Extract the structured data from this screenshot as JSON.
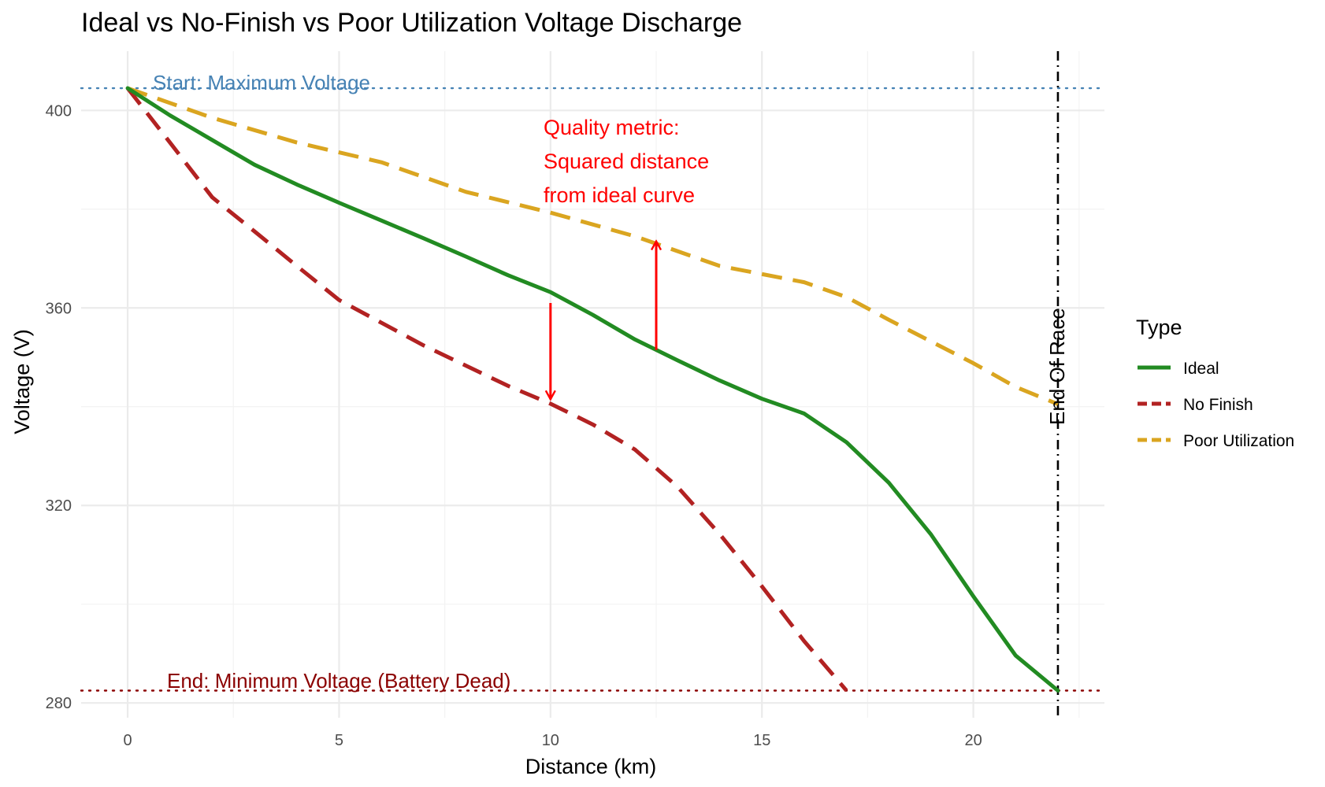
{
  "chart_data": {
    "type": "line",
    "title": "Ideal vs No-Finish vs Poor Utilization Voltage Discharge",
    "xlabel": "Distance (km)",
    "ylabel": "Voltage (V)",
    "xlim": [
      -1.1,
      23.1
    ],
    "ylim": [
      277,
      412
    ],
    "x_ticks": [
      0,
      5,
      10,
      15,
      20
    ],
    "y_ticks": [
      280,
      320,
      360,
      400
    ],
    "x_tick_labels": [
      "0",
      "5",
      "10",
      "15",
      "20"
    ],
    "y_tick_labels": [
      "280",
      "320",
      "360",
      "400"
    ],
    "grid": true,
    "legend": {
      "title": "Type",
      "position": "right"
    },
    "series": [
      {
        "name": "Ideal",
        "color": "#228B22",
        "dash": "solid",
        "x": [
          0,
          1,
          2,
          3,
          4,
          5,
          6,
          7,
          8,
          9,
          10,
          11,
          12,
          13,
          14,
          15,
          16,
          17,
          18,
          19,
          20,
          21,
          22
        ],
        "y": [
          404.5,
          399,
          394,
          389,
          385,
          381.3,
          377.7,
          374.1,
          370.4,
          366.6,
          363.2,
          358.6,
          353.6,
          349.4,
          345.3,
          341.6,
          338.6,
          332.8,
          324.6,
          314.1,
          301.6,
          289.6,
          282.5
        ]
      },
      {
        "name": "No Finish",
        "color": "#B22222",
        "dash": "dashed",
        "x": [
          0,
          1,
          2,
          3,
          4,
          5,
          6,
          7,
          8,
          9,
          10,
          11,
          12,
          13,
          14,
          15,
          16,
          17
        ],
        "y": [
          404.5,
          393.5,
          382.4,
          375.5,
          368.5,
          361.6,
          357,
          352.4,
          348.3,
          344.2,
          340.6,
          336.4,
          331.3,
          323.8,
          314.2,
          303.6,
          292.5,
          282.5
        ]
      },
      {
        "name": "Poor Utilization",
        "color": "#DAA520",
        "dash": "dashed",
        "x": [
          0,
          2,
          4,
          6,
          8,
          10,
          12,
          14,
          16,
          17,
          18,
          19,
          20,
          21,
          22
        ],
        "y": [
          404.5,
          398.5,
          393.5,
          389.5,
          383.5,
          379.3,
          374.5,
          368.5,
          365.2,
          362.2,
          357.6,
          353.2,
          348.8,
          344,
          340.5
        ]
      }
    ],
    "reference_lines": {
      "max_voltage": {
        "y": 404.5,
        "label": "Start: Maximum Voltage",
        "color": "#4682B4"
      },
      "min_voltage": {
        "y": 282.5,
        "label": "End: Minimum Voltage (Battery Dead)",
        "color": "#8B0000"
      },
      "end_of_race": {
        "x": 22,
        "label": "End Of Race",
        "color": "#000000"
      }
    },
    "annotations": {
      "quality_lines": [
        "Quality metric:",
        "Squared distance",
        "from ideal curve"
      ],
      "quality_color": "#FF0000",
      "arrows": [
        {
          "x": 10,
          "y_from": 361,
          "y_to": 341.5
        },
        {
          "x": 12.5,
          "y_from": 351.5,
          "y_to": 373.5
        }
      ]
    }
  }
}
